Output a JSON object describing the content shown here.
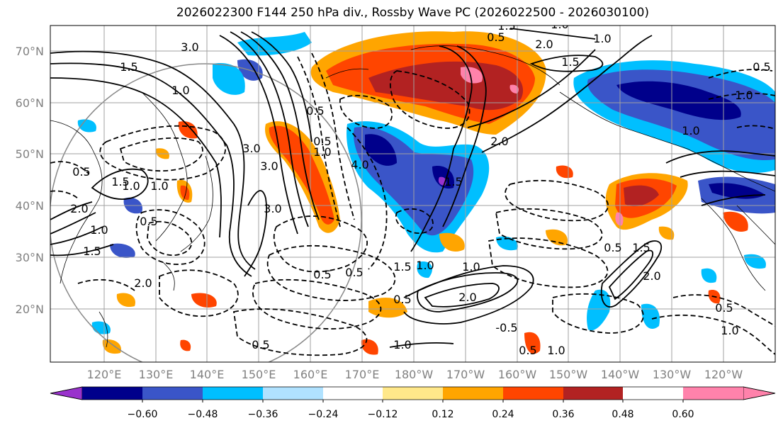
{
  "title": "2026022300 F144 250 hPa div., Rossby Wave PC (2026022500 - 2026030100)",
  "lat_labels": [
    "70°N",
    "60°N",
    "50°N",
    "40°N",
    "30°N",
    "20°N"
  ],
  "lon_labels": [
    "120°E",
    "130°E",
    "140°E",
    "150°E",
    "160°E",
    "170°E",
    "180°W",
    "170°W",
    "160°W",
    "150°W",
    "140°W",
    "130°W",
    "120°W"
  ],
  "colorbar": {
    "colors": [
      "#9932cc",
      "#00008b",
      "#3a55c8",
      "#00bfff",
      "#b0e2ff",
      "#ffffff",
      "#ffe88a",
      "#ffa500",
      "#ff4500",
      "#b22222",
      "#ff82ab"
    ],
    "labels": [
      "−0.60",
      "−0.48",
      "−0.36",
      "−0.24",
      "−0.12",
      "0.12",
      "0.24",
      "0.36",
      "0.48",
      "0.60"
    ]
  },
  "contour_labels": [
    "3.0",
    "1.5",
    "1.0",
    "0.5",
    "1.5",
    "1.0",
    "1.0",
    "0.5",
    "2.0",
    "1.0",
    "1.5",
    "2.0",
    "3.0",
    "3.0",
    "4.0",
    "0.5",
    "0.5",
    "1.5",
    "0.5",
    "1.5",
    "1.0",
    "2.0",
    "1.5",
    "2.0",
    "1.0",
    "0.5",
    "1.0",
    "2.0",
    "1.0",
    "-0.5",
    "0.5",
    "1.0",
    "1.5",
    "2.0",
    "0.5",
    "1.0",
    "0.5",
    "1.5",
    "1.0",
    "0.5",
    "0.5",
    "0.5",
    "1.0",
    "0.5",
    "1.0",
    "1.0",
    "3.0"
  ]
}
